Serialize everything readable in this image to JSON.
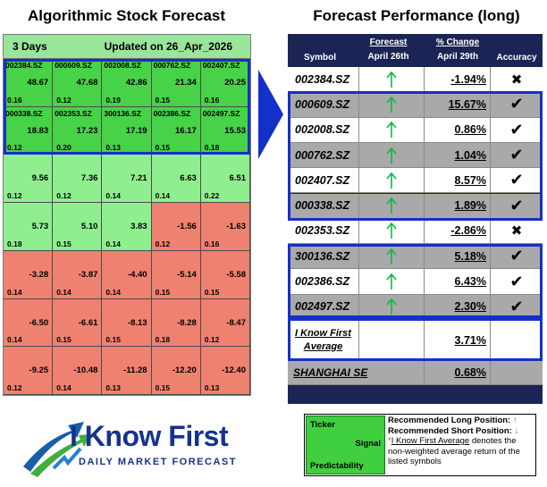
{
  "left": {
    "title": "Algorithmic Stock Forecast",
    "horizon": "3 Days",
    "updated": "Updated on 26_Apr_2026",
    "cells": [
      {
        "symbol": "002384.SZ",
        "signal": "48.67",
        "pred": "0.16",
        "color": "top"
      },
      {
        "symbol": "000609.SZ",
        "signal": "47.68",
        "pred": "0.12",
        "color": "top"
      },
      {
        "symbol": "002008.SZ",
        "signal": "42.86",
        "pred": "0.19",
        "color": "top"
      },
      {
        "symbol": "000762.SZ",
        "signal": "21.34",
        "pred": "0.15",
        "color": "top"
      },
      {
        "symbol": "002407.SZ",
        "signal": "20.25",
        "pred": "0.16",
        "color": "top"
      },
      {
        "symbol": "000338.SZ",
        "signal": "18.83",
        "pred": "0.12",
        "color": "top"
      },
      {
        "symbol": "002353.SZ",
        "signal": "17.23",
        "pred": "0.20",
        "color": "top"
      },
      {
        "symbol": "300136.SZ",
        "signal": "17.19",
        "pred": "0.13",
        "color": "top"
      },
      {
        "symbol": "002386.SZ",
        "signal": "16.17",
        "pred": "0.15",
        "color": "top"
      },
      {
        "symbol": "002497.SZ",
        "signal": "15.53",
        "pred": "0.18",
        "color": "top"
      },
      {
        "symbol": "",
        "signal": "9.56",
        "pred": "0.12",
        "color": "green"
      },
      {
        "symbol": "",
        "signal": "7.36",
        "pred": "0.12",
        "color": "green"
      },
      {
        "symbol": "",
        "signal": "7.21",
        "pred": "0.14",
        "color": "green"
      },
      {
        "symbol": "",
        "signal": "6.63",
        "pred": "0.14",
        "color": "green"
      },
      {
        "symbol": "",
        "signal": "6.51",
        "pred": "0.22",
        "color": "green"
      },
      {
        "symbol": "",
        "signal": "5.73",
        "pred": "0.18",
        "color": "green"
      },
      {
        "symbol": "",
        "signal": "5.10",
        "pred": "0.15",
        "color": "green"
      },
      {
        "symbol": "",
        "signal": "3.83",
        "pred": "0.14",
        "color": "green"
      },
      {
        "symbol": "",
        "signal": "-1.56",
        "pred": "0.12",
        "color": "red"
      },
      {
        "symbol": "",
        "signal": "-1.63",
        "pred": "0.16",
        "color": "red"
      },
      {
        "symbol": "",
        "signal": "-3.28",
        "pred": "0.14",
        "color": "red"
      },
      {
        "symbol": "",
        "signal": "-3.87",
        "pred": "0.14",
        "color": "red"
      },
      {
        "symbol": "",
        "signal": "-4.40",
        "pred": "0.14",
        "color": "red"
      },
      {
        "symbol": "",
        "signal": "-5.14",
        "pred": "0.15",
        "color": "red"
      },
      {
        "symbol": "",
        "signal": "-5.58",
        "pred": "0.15",
        "color": "red"
      },
      {
        "symbol": "",
        "signal": "-6.50",
        "pred": "0.14",
        "color": "red"
      },
      {
        "symbol": "",
        "signal": "-6.61",
        "pred": "0.15",
        "color": "red"
      },
      {
        "symbol": "",
        "signal": "-8.13",
        "pred": "0.15",
        "color": "red"
      },
      {
        "symbol": "",
        "signal": "-8.28",
        "pred": "0.18",
        "color": "red"
      },
      {
        "symbol": "",
        "signal": "-8.47",
        "pred": "0.12",
        "color": "red"
      },
      {
        "symbol": "",
        "signal": "-9.25",
        "pred": "0.12",
        "color": "red"
      },
      {
        "symbol": "",
        "signal": "-10.48",
        "pred": "0.14",
        "color": "red"
      },
      {
        "symbol": "",
        "signal": "-11.28",
        "pred": "0.13",
        "color": "red"
      },
      {
        "symbol": "",
        "signal": "-12.20",
        "pred": "0.15",
        "color": "red"
      },
      {
        "symbol": "",
        "signal": "-12.40",
        "pred": "0.13",
        "color": "red"
      }
    ]
  },
  "right": {
    "title": "Forecast Performance (long)",
    "headers": {
      "symbol": "Symbol",
      "forecast": "Forecast",
      "forecast_date": "April 26th",
      "change": "% Change",
      "change_date": "April 29th",
      "accuracy": "Accuracy"
    },
    "rows": [
      {
        "symbol": "002384.SZ",
        "change": "-1.94%",
        "accuracy": "✖",
        "forecast_icon": "up-arrow"
      },
      {
        "symbol": "000609.SZ",
        "change": "15.67%",
        "accuracy": "✔",
        "forecast_icon": "up-arrow"
      },
      {
        "symbol": "002008.SZ",
        "change": "0.86%",
        "accuracy": "✔",
        "forecast_icon": "up-arrow"
      },
      {
        "symbol": "000762.SZ",
        "change": "1.04%",
        "accuracy": "✔",
        "forecast_icon": "up-arrow"
      },
      {
        "symbol": "002407.SZ",
        "change": "8.57%",
        "accuracy": "✔",
        "forecast_icon": "up-arrow"
      },
      {
        "symbol": "000338.SZ",
        "change": "1.89%",
        "accuracy": "✔",
        "forecast_icon": "up-arrow"
      },
      {
        "symbol": "002353.SZ",
        "change": "-2.86%",
        "accuracy": "✖",
        "forecast_icon": "up-arrow"
      },
      {
        "symbol": "300136.SZ",
        "change": "5.18%",
        "accuracy": "✔",
        "forecast_icon": "up-arrow"
      },
      {
        "symbol": "002386.SZ",
        "change": "6.43%",
        "accuracy": "✔",
        "forecast_icon": "up-arrow"
      },
      {
        "symbol": "002497.SZ",
        "change": "2.30%",
        "accuracy": "✔",
        "forecast_icon": "up-arrow"
      }
    ],
    "average": {
      "label_line1": "I Know First",
      "label_line2": "Average",
      "value": "3.71%"
    },
    "benchmark": {
      "label": "SHANGHAI SE",
      "value": "0.68%"
    }
  },
  "logo": {
    "brand": "I Know First",
    "tagline": "DAILY MARKET FORECAST"
  },
  "legend": {
    "ticker": "Ticker",
    "signal": "Signal",
    "predictability": "Predictability",
    "long": "Recommended Long Position:",
    "short": "Recommended Short Position:",
    "avg_name": "I Know First Average",
    "avg_desc": " denotes the non-weighted average return of the listed symbols"
  },
  "colors": {
    "top_cell": "#47d247",
    "green_cell": "#8fef8f",
    "red_cell": "#ef8170",
    "navy": "#1b2454",
    "frame_blue": "#1530c8",
    "up_arrow": "#11b54a",
    "down_arrow": "#e0303a"
  }
}
